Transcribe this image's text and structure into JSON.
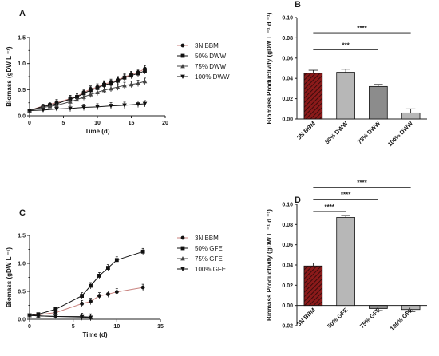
{
  "colors": {
    "bbm": "#8b1a1a",
    "bbm_line": "#c8827e",
    "dark": "#111111",
    "mid": "#444444",
    "grey_bar": "#b7b7b7",
    "grey_bar2": "#8c8c8c",
    "axis": "#222222"
  },
  "chart_data": [
    {
      "panel": "A",
      "type": "line",
      "xlabel": "Time (d)",
      "ylabel": "Biomass (gDW L ⁻¹)",
      "xlim": [
        0,
        20
      ],
      "ylim": [
        0,
        1.5
      ],
      "xticks": [
        "0",
        "5",
        "10",
        "15",
        "20"
      ],
      "yticks": [
        "0.0",
        "0.5",
        "1.0",
        "1.5"
      ],
      "legend_position": "right",
      "series": [
        {
          "name": "3N BBM",
          "x": [
            0,
            2,
            3,
            4,
            6,
            7,
            8,
            9,
            10,
            11,
            12,
            13,
            14,
            15,
            16,
            17
          ],
          "y": [
            0.1,
            0.19,
            0.22,
            0.25,
            0.33,
            0.37,
            0.45,
            0.51,
            0.55,
            0.61,
            0.64,
            0.69,
            0.74,
            0.79,
            0.83,
            0.9
          ]
        },
        {
          "name": "50% DWW",
          "x": [
            0,
            2,
            3,
            4,
            6,
            7,
            8,
            9,
            10,
            11,
            12,
            13,
            14,
            15,
            16,
            17
          ],
          "y": [
            0.1,
            0.18,
            0.2,
            0.23,
            0.32,
            0.36,
            0.43,
            0.49,
            0.53,
            0.59,
            0.62,
            0.67,
            0.73,
            0.77,
            0.81,
            0.86
          ]
        },
        {
          "name": "75% DWW",
          "x": [
            0,
            2,
            3,
            4,
            6,
            7,
            8,
            9,
            10,
            11,
            12,
            13,
            14,
            15,
            16,
            17
          ],
          "y": [
            0.1,
            0.16,
            0.18,
            0.2,
            0.27,
            0.31,
            0.36,
            0.41,
            0.45,
            0.49,
            0.52,
            0.55,
            0.58,
            0.6,
            0.62,
            0.66
          ]
        },
        {
          "name": "100% DWW",
          "x": [
            0,
            2,
            4,
            6,
            8,
            10,
            12,
            14,
            16,
            17
          ],
          "y": [
            0.1,
            0.11,
            0.13,
            0.14,
            0.16,
            0.17,
            0.19,
            0.2,
            0.22,
            0.23
          ]
        }
      ]
    },
    {
      "panel": "B",
      "type": "bar",
      "ylabel": "Biomass Productivity (gDW L ⁻¹ d ⁻¹)",
      "ylim": [
        0,
        0.1
      ],
      "yticks": [
        "0.00",
        "0.02",
        "0.04",
        "0.06",
        "0.08",
        "0.10"
      ],
      "categories": [
        "3N BBM",
        "50% DWW",
        "75% DWW",
        "100% DWW"
      ],
      "values": [
        0.045,
        0.046,
        0.032,
        0.006
      ],
      "errors": [
        0.003,
        0.003,
        0.002,
        0.004
      ],
      "annotations": [
        {
          "from": 0,
          "to": 2,
          "text": "***",
          "y": 0.068
        },
        {
          "from": 0,
          "to": 3,
          "text": "****",
          "y": 0.085
        }
      ]
    },
    {
      "panel": "C",
      "type": "line",
      "xlabel": "Time (d)",
      "ylabel": "Biomass (gDW L ⁻¹)",
      "xlim": [
        0,
        15
      ],
      "ylim": [
        0,
        1.5
      ],
      "xticks": [
        "0",
        "5",
        "10",
        "15"
      ],
      "yticks": [
        "0.0",
        "0.5",
        "1.0",
        "1.5"
      ],
      "legend_position": "right",
      "series": [
        {
          "name": "3N BBM",
          "x": [
            0,
            1,
            3,
            6,
            7,
            8,
            9,
            10,
            13
          ],
          "y": [
            0.07,
            0.08,
            0.12,
            0.28,
            0.32,
            0.42,
            0.45,
            0.49,
            0.57
          ]
        },
        {
          "name": "50% GFE",
          "x": [
            0,
            1,
            3,
            6,
            7,
            8,
            9,
            10,
            13
          ],
          "y": [
            0.07,
            0.09,
            0.18,
            0.42,
            0.6,
            0.78,
            0.92,
            1.06,
            1.21
          ]
        },
        {
          "name": "75% GFE",
          "x": [
            0,
            1,
            3,
            6,
            7
          ],
          "y": [
            0.07,
            0.06,
            0.05,
            0.05,
            0.04
          ]
        },
        {
          "name": "100% GFE",
          "x": [
            0,
            1,
            3,
            6,
            7
          ],
          "y": [
            0.07,
            0.06,
            0.05,
            0.04,
            0.03
          ]
        }
      ]
    },
    {
      "panel": "D",
      "type": "bar",
      "ylabel": "Biomass Productivity (gDW L ⁻¹ d ⁻¹)",
      "ylim": [
        -0.02,
        0.1
      ],
      "yticks": [
        "-0.02",
        "0.00",
        "0.02",
        "0.04",
        "0.06",
        "0.08",
        "0.10"
      ],
      "categories": [
        "3N BBM",
        "50% GFE",
        "75% GFE",
        "100% GFE"
      ],
      "values": [
        0.039,
        0.087,
        -0.003,
        -0.004
      ],
      "errors": [
        0.003,
        0.002,
        0.002,
        0.002
      ],
      "annotations": [
        {
          "from": 0,
          "to": 1,
          "text": "****",
          "y": 0.093
        },
        {
          "from": 0,
          "to": 2,
          "text": "****",
          "y": 0.105
        },
        {
          "from": 0,
          "to": 3,
          "text": "****",
          "y": 0.117
        }
      ]
    }
  ]
}
